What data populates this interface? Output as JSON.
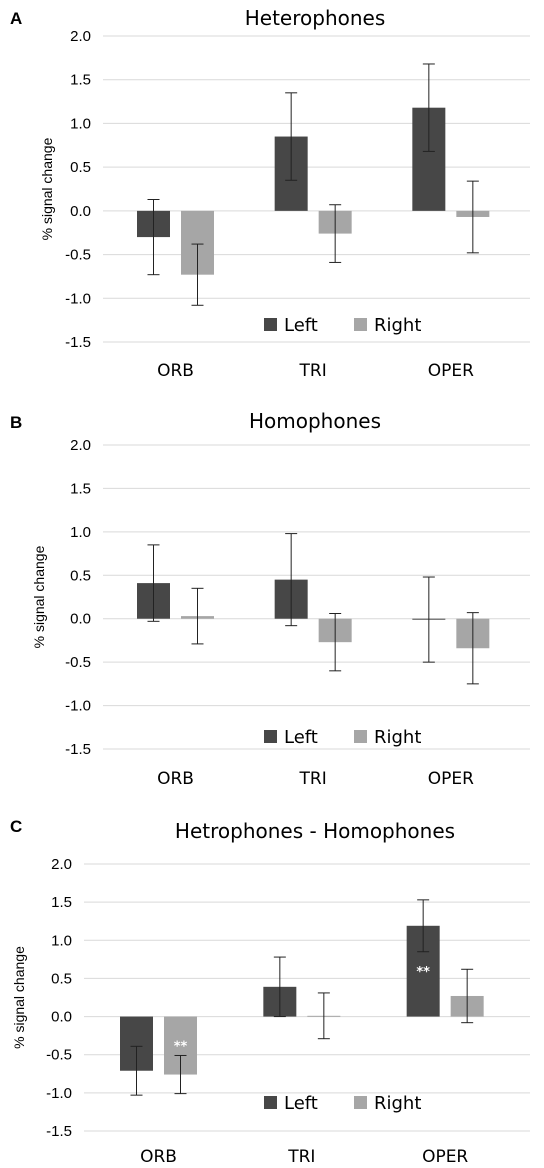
{
  "chart_data": [
    {
      "panel": "A",
      "type": "bar",
      "title": "Heterophones",
      "ylabel": "% signal change",
      "categories": [
        "ORB",
        "TRI",
        "OPER"
      ],
      "yticks": [
        "2.0",
        "1.5",
        "1.0",
        "0.5",
        "0.0",
        "-0.5",
        "-1.0",
        "-1.5"
      ],
      "ylim": [
        -1.5,
        2.0
      ],
      "grid": true,
      "legend_position": "bottom",
      "series": [
        {
          "name": "Left",
          "color": "#474747",
          "values": [
            -0.3,
            0.85,
            1.18
          ],
          "err": [
            0.43,
            0.5,
            0.5
          ]
        },
        {
          "name": "Right",
          "color": "#a6a6a6",
          "values": [
            -0.73,
            -0.26,
            -0.07
          ],
          "err": [
            0.35,
            0.33,
            0.41
          ]
        }
      ],
      "annotations": []
    },
    {
      "panel": "B",
      "type": "bar",
      "title": "Homophones",
      "ylabel": "% signal change",
      "categories": [
        "ORB",
        "TRI",
        "OPER"
      ],
      "yticks": [
        "2.0",
        "1.5",
        "1.0",
        "0.5",
        "0.0",
        "-0.5",
        "-1.0",
        "-1.5"
      ],
      "ylim": [
        -1.5,
        2.0
      ],
      "grid": true,
      "legend_position": "bottom",
      "series": [
        {
          "name": "Left",
          "color": "#474747",
          "values": [
            0.41,
            0.45,
            -0.01
          ],
          "err": [
            0.44,
            0.53,
            0.49
          ]
        },
        {
          "name": "Right",
          "color": "#a6a6a6",
          "values": [
            0.03,
            -0.27,
            -0.34
          ],
          "err": [
            0.32,
            0.33,
            0.41
          ]
        }
      ],
      "annotations": []
    },
    {
      "panel": "C",
      "type": "bar",
      "title": "Hetrophones - Homophones",
      "ylabel": "% signal change",
      "categories": [
        "ORB",
        "TRI",
        "OPER"
      ],
      "yticks": [
        "2.0",
        "1.5",
        "1.0",
        "0.5",
        "0.0",
        "-0.5",
        "-1.0",
        "-1.5"
      ],
      "ylim": [
        -1.5,
        2.0
      ],
      "grid": true,
      "legend_position": "bottom",
      "series": [
        {
          "name": "Left",
          "color": "#474747",
          "values": [
            -0.71,
            0.39,
            1.19
          ],
          "err": [
            0.32,
            0.39,
            0.34
          ]
        },
        {
          "name": "Right",
          "color": "#a6a6a6",
          "values": [
            -0.76,
            0.01,
            0.27
          ],
          "err": [
            0.25,
            0.3,
            0.35
          ]
        }
      ],
      "annotations": [
        {
          "category": "ORB",
          "series": "Right",
          "text": "**"
        },
        {
          "category": "OPER",
          "series": "Left",
          "text": "**"
        }
      ]
    }
  ]
}
